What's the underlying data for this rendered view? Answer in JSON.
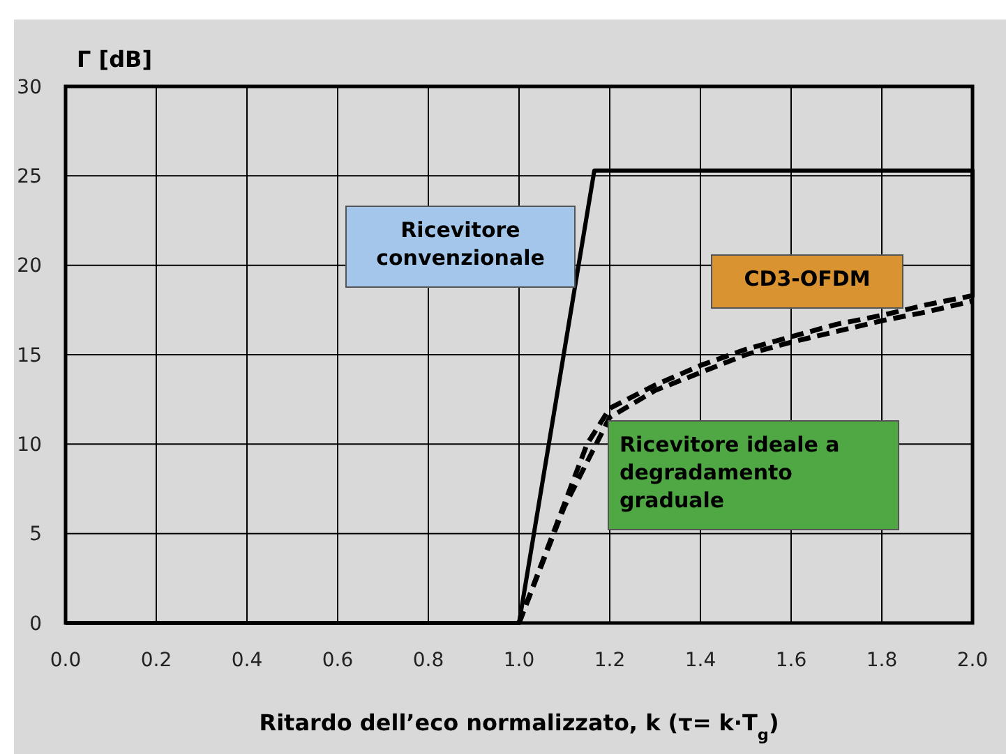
{
  "chart_data": {
    "type": "line",
    "xlabel": "Ritardo dell’eco normalizzato, k (τ= k·T$_{g}$)",
    "ylabel": "Γ [dB]",
    "xlim": [
      0,
      2
    ],
    "xticks": [
      {
        "value": 0,
        "label": "0.0"
      },
      {
        "value": 0.2,
        "label": "0.2"
      },
      {
        "value": 0.4,
        "label": "0.4"
      },
      {
        "value": 0.6,
        "label": "0.6"
      },
      {
        "value": 0.8,
        "label": "0.8"
      },
      {
        "value": 1,
        "label": "1.0"
      },
      {
        "value": 1.2,
        "label": "1.2"
      },
      {
        "value": 1.4,
        "label": "1.4"
      },
      {
        "value": 1.6,
        "label": "1.6"
      },
      {
        "value": 1.8,
        "label": "1.8"
      },
      {
        "value": 2,
        "label": "2.0"
      }
    ],
    "ylim": [
      0,
      30
    ],
    "yticks": [
      0,
      5,
      10,
      15,
      20,
      25,
      30
    ],
    "grid": true,
    "legend": false,
    "series": [
      {
        "name": "Ricevitore convenzionale",
        "color": "#000000",
        "line_style": "solid",
        "x": [
          0,
          1,
          1.166,
          2,
          2
        ],
        "values": [
          0,
          0,
          25.3,
          25.3,
          18.2
        ]
      },
      {
        "name": "Ricevitore ideale a degradamento graduale",
        "color": "#000000",
        "line_style": "dashed",
        "x": [
          1,
          1.15,
          1.2,
          1.3,
          1.4,
          1.5,
          1.6,
          1.7,
          1.8,
          1.9,
          2
        ],
        "values": [
          0,
          10,
          12,
          13.3,
          14.4,
          15.3,
          16,
          16.7,
          17.2,
          17.8,
          18.3
        ]
      },
      {
        "name": "CD3-OFDM",
        "color": "#000000",
        "line_style": "dashed",
        "x": [
          1,
          1.1,
          1.2,
          1.3,
          1.4,
          1.5,
          1.6,
          1.7,
          1.8,
          1.9,
          2
        ],
        "values": [
          0,
          6.5,
          11.5,
          13,
          14,
          15,
          15.7,
          16.3,
          16.9,
          17.4,
          18
        ]
      }
    ]
  }
}
